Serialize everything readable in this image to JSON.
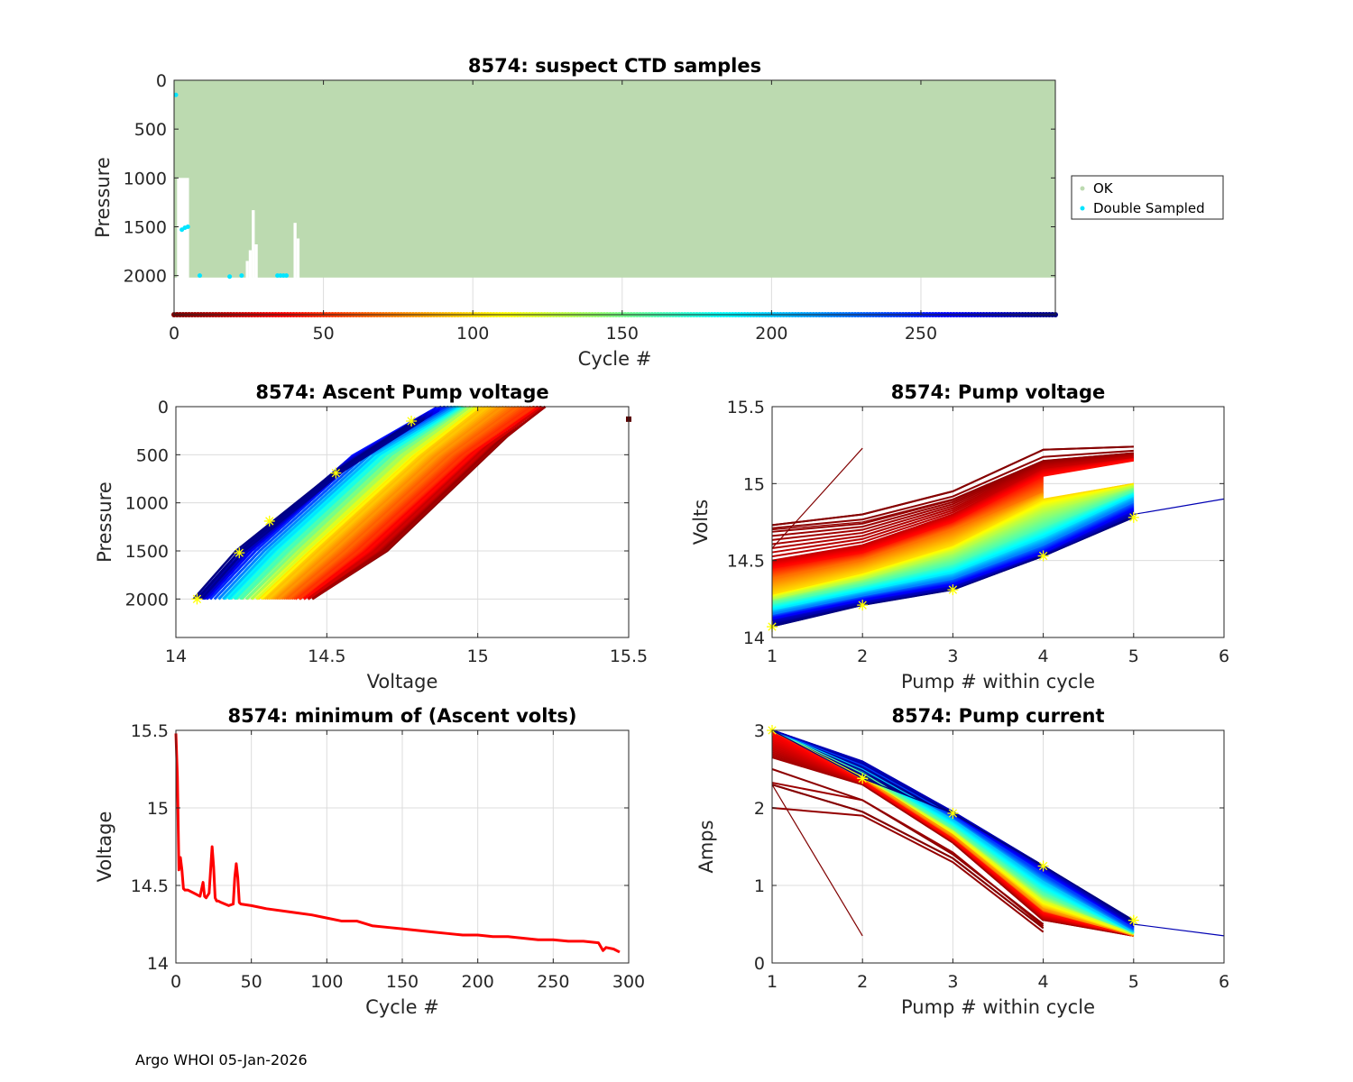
{
  "footer": "Argo WHOI 05-Jan-2026",
  "chart_data": [
    {
      "id": "suspect-ctd",
      "type": "scatter",
      "title": "8574: suspect CTD samples",
      "xlabel": "Cycle #",
      "ylabel": "Pressure",
      "xlim": [
        0,
        295
      ],
      "ylim": [
        0,
        2400
      ],
      "y_reversed": true,
      "xticks": [
        0,
        50,
        100,
        150,
        200,
        250
      ],
      "yticks": [
        0,
        500,
        1000,
        1500,
        2000
      ],
      "grid": true,
      "legend": {
        "placement": "outside-right",
        "entries": [
          {
            "label": "OK",
            "color": "#bcdab0"
          },
          {
            "label": "Double Sampled",
            "color": "#00e5ff"
          }
        ]
      },
      "ok_profile_max_pressure": 2020,
      "short_profiles": [
        {
          "cycles": [
            1,
            5
          ],
          "max_pressure": 1000
        },
        {
          "cycles": [
            2,
            5
          ],
          "max_pressure": 1500
        },
        {
          "cycles": [
            24,
            25
          ],
          "max_pressure": 1850
        },
        {
          "cycles": [
            25,
            26
          ],
          "max_pressure": 1740
        },
        {
          "cycles": [
            26,
            27
          ],
          "max_pressure": 1330
        },
        {
          "cycles": [
            27,
            28
          ],
          "max_pressure": 1680
        },
        {
          "cycles": [
            40,
            41
          ],
          "max_pressure": 1460
        },
        {
          "cycles": [
            41,
            42
          ],
          "max_pressure": 1620
        }
      ],
      "double_sampled": [
        {
          "cycle": 0,
          "pressure": 150
        },
        {
          "cycle": 2,
          "pressure": 1530
        },
        {
          "cycle": 3,
          "pressure": 1510
        },
        {
          "cycle": 4,
          "pressure": 1500
        },
        {
          "cycle": 8,
          "pressure": 2000
        },
        {
          "cycle": 18,
          "pressure": 2010
        },
        {
          "cycle": 22,
          "pressure": 2000
        },
        {
          "cycle": 34,
          "pressure": 2000
        },
        {
          "cycle": 35,
          "pressure": 2000
        },
        {
          "cycle": 36,
          "pressure": 2000
        },
        {
          "cycle": 37,
          "pressure": 2000
        }
      ],
      "colorbar_row": {
        "pressure": 2400,
        "colormap": "jet-reversed",
        "cycle_range": [
          0,
          295
        ]
      }
    },
    {
      "id": "ascent-pump-voltage",
      "type": "line",
      "title": "8574: Ascent Pump voltage",
      "xlabel": "Voltage",
      "ylabel": "Pressure",
      "xlim": [
        14,
        15.5
      ],
      "ylim": [
        0,
        2400
      ],
      "y_reversed": true,
      "xticks": [
        14,
        14.5,
        15,
        15.5
      ],
      "yticks": [
        0,
        500,
        1000,
        1500,
        2000
      ],
      "grid": true,
      "colormap": "jet-reversed by cycle",
      "series_envelope": [
        {
          "cycle": 0,
          "points": [
            [
              14.45,
              2000
            ],
            [
              14.7,
              1500
            ],
            [
              15.1,
              300
            ],
            [
              15.22,
              0
            ]
          ]
        },
        {
          "cycle": 50,
          "points": [
            [
              14.4,
              2000
            ],
            [
              14.6,
              1500
            ],
            [
              14.95,
              500
            ],
            [
              15.18,
              0
            ]
          ]
        },
        {
          "cycle": 100,
          "points": [
            [
              14.28,
              2000
            ],
            [
              14.45,
              1500
            ],
            [
              14.8,
              500
            ],
            [
              15.0,
              0
            ]
          ]
        },
        {
          "cycle": 150,
          "points": [
            [
              14.22,
              2000
            ],
            [
              14.38,
              1500
            ],
            [
              14.72,
              500
            ],
            [
              14.95,
              0
            ]
          ]
        },
        {
          "cycle": 200,
          "points": [
            [
              14.15,
              2000
            ],
            [
              14.3,
              1500
            ],
            [
              14.65,
              500
            ],
            [
              14.92,
              0
            ]
          ]
        },
        {
          "cycle": 250,
          "points": [
            [
              14.1,
              2000
            ],
            [
              14.25,
              1500
            ],
            [
              14.6,
              500
            ],
            [
              14.88,
              0
            ]
          ]
        },
        {
          "cycle": 295,
          "points": [
            [
              14.07,
              2000
            ],
            [
              14.21,
              1500
            ],
            [
              14.53,
              700
            ],
            [
              14.8,
              150
            ]
          ]
        }
      ],
      "outlier": {
        "voltage": 15.5,
        "pressure": 130
      },
      "latest_markers": [
        [
          14.07,
          2000
        ],
        [
          14.21,
          1520
        ],
        [
          14.31,
          1190
        ],
        [
          14.53,
          690
        ],
        [
          14.78,
          150
        ]
      ]
    },
    {
      "id": "pump-voltage",
      "type": "line",
      "title": "8574: Pump voltage",
      "xlabel": "Pump # within cycle",
      "ylabel": "Volts",
      "xlim": [
        1,
        6
      ],
      "ylim": [
        14,
        15.5
      ],
      "xticks": [
        1,
        2,
        3,
        4,
        5,
        6
      ],
      "yticks": [
        14,
        14.5,
        15,
        15.5
      ],
      "grid": true,
      "colormap": "jet-reversed by cycle",
      "series": [
        {
          "cycle": 0,
          "values": [
            14.58,
            15.23
          ]
        },
        {
          "cycle": 2,
          "values": [
            14.73,
            14.8,
            14.95,
            15.22,
            15.24
          ]
        },
        {
          "cycle": 5,
          "values": [
            14.7,
            14.75,
            14.9,
            15.15,
            15.2
          ]
        },
        {
          "cycle": 20,
          "values": [
            14.5,
            14.6,
            14.8,
            15.1,
            15.17
          ]
        },
        {
          "cycle": 40,
          "values": [
            14.45,
            14.55,
            14.75,
            15.05,
            15.15
          ]
        },
        {
          "cycle": 70,
          "values": [
            14.38,
            14.5,
            14.7,
            14.95
          ]
        },
        {
          "cycle": 100,
          "values": [
            14.28,
            14.42,
            14.6,
            14.9,
            15.0
          ]
        },
        {
          "cycle": 130,
          "values": [
            14.25,
            14.38,
            14.55,
            14.82,
            14.98
          ]
        },
        {
          "cycle": 160,
          "values": [
            14.22,
            14.34,
            14.48,
            14.72,
            14.95
          ]
        },
        {
          "cycle": 190,
          "values": [
            14.18,
            14.3,
            14.42,
            14.65,
            14.92
          ]
        },
        {
          "cycle": 220,
          "values": [
            14.15,
            14.27,
            14.38,
            14.6,
            14.88
          ]
        },
        {
          "cycle": 260,
          "values": [
            14.12,
            14.24,
            14.34,
            14.55,
            14.83
          ]
        },
        {
          "cycle": 280,
          "values": [
            14.1,
            14.22,
            14.32,
            14.53,
            14.8,
            14.9
          ]
        },
        {
          "cycle": 295,
          "values": [
            14.07,
            14.21,
            14.31,
            14.53,
            14.78
          ]
        }
      ],
      "latest_markers": [
        14.07,
        14.21,
        14.31,
        14.53,
        14.78
      ]
    },
    {
      "id": "min-ascent-volts",
      "type": "line",
      "title": "8574: minimum of (Ascent volts)",
      "xlabel": "Cycle #",
      "ylabel": "Voltage",
      "xlim": [
        0,
        300
      ],
      "ylim": [
        14,
        15.5
      ],
      "xticks": [
        0,
        50,
        100,
        150,
        200,
        250,
        300
      ],
      "yticks": [
        14,
        14.5,
        15,
        15.5
      ],
      "grid": true,
      "color": "#ff0000",
      "x": [
        0,
        1,
        2,
        3,
        4,
        5,
        6,
        8,
        12,
        16,
        18,
        19,
        20,
        22,
        23,
        24,
        25,
        26,
        27,
        28,
        30,
        35,
        38,
        39,
        40,
        41,
        42,
        43,
        50,
        60,
        75,
        90,
        100,
        110,
        120,
        130,
        140,
        150,
        160,
        170,
        180,
        190,
        200,
        210,
        220,
        230,
        240,
        250,
        260,
        270,
        280,
        283,
        285,
        290,
        294
      ],
      "y": [
        15.48,
        15.2,
        14.6,
        14.68,
        14.6,
        14.48,
        14.47,
        14.47,
        14.45,
        14.43,
        14.52,
        14.43,
        14.42,
        14.45,
        14.6,
        14.75,
        14.62,
        14.42,
        14.4,
        14.4,
        14.39,
        14.37,
        14.38,
        14.55,
        14.64,
        14.55,
        14.39,
        14.38,
        14.37,
        14.35,
        14.33,
        14.31,
        14.29,
        14.27,
        14.27,
        14.24,
        14.23,
        14.22,
        14.21,
        14.2,
        14.19,
        14.18,
        14.18,
        14.17,
        14.17,
        14.16,
        14.15,
        14.15,
        14.14,
        14.14,
        14.13,
        14.08,
        14.1,
        14.09,
        14.07
      ]
    },
    {
      "id": "pump-current",
      "type": "line",
      "title": "8574: Pump current",
      "xlabel": "Pump # within cycle",
      "ylabel": "Amps",
      "xlim": [
        1,
        6
      ],
      "ylim": [
        0,
        3
      ],
      "xticks": [
        1,
        2,
        3,
        4,
        5,
        6
      ],
      "yticks": [
        0,
        1,
        2,
        3
      ],
      "grid": true,
      "colormap": "jet-reversed by cycle",
      "series": [
        {
          "cycle": 0,
          "values": [
            2.3,
            0.35
          ]
        },
        {
          "cycle": 2,
          "values": [
            2.3,
            1.95,
            1.35,
            0.45
          ]
        },
        {
          "cycle": 4,
          "values": [
            2.5,
            2.1,
            1.4,
            0.5
          ]
        },
        {
          "cycle": 6,
          "values": [
            2.0,
            1.9,
            1.3,
            0.4
          ]
        },
        {
          "cycle": 10,
          "values": [
            2.65,
            2.3,
            1.55,
            0.55,
            0.35
          ]
        },
        {
          "cycle": 40,
          "values": [
            3.0,
            2.35,
            1.6,
            0.65,
            0.35
          ]
        },
        {
          "cycle": 80,
          "values": [
            3.0,
            2.4,
            1.65,
            0.7,
            0.35
          ]
        },
        {
          "cycle": 120,
          "values": [
            3.0,
            2.4,
            1.7,
            0.8,
            0.38
          ]
        },
        {
          "cycle": 160,
          "values": [
            3.0,
            2.45,
            1.75,
            0.9,
            0.38
          ]
        },
        {
          "cycle": 200,
          "values": [
            3.0,
            2.5,
            1.85,
            1.05,
            0.4
          ]
        },
        {
          "cycle": 240,
          "values": [
            3.0,
            2.55,
            1.9,
            1.15,
            0.45
          ]
        },
        {
          "cycle": 280,
          "values": [
            3.0,
            2.6,
            1.95,
            1.25,
            0.5,
            0.35
          ]
        },
        {
          "cycle": 295,
          "values": [
            3.0,
            2.38,
            1.93,
            1.25,
            0.55
          ]
        }
      ],
      "latest_markers": [
        3.0,
        2.38,
        1.93,
        1.25,
        0.55
      ]
    }
  ]
}
